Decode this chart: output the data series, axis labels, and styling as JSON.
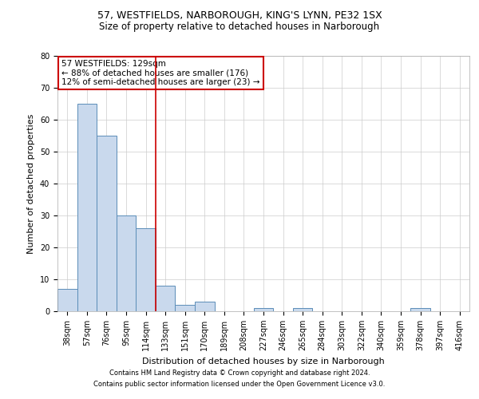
{
  "title1": "57, WESTFIELDS, NARBOROUGH, KING'S LYNN, PE32 1SX",
  "title2": "Size of property relative to detached houses in Narborough",
  "xlabel": "Distribution of detached houses by size in Narborough",
  "ylabel": "Number of detached properties",
  "categories": [
    "38sqm",
    "57sqm",
    "76sqm",
    "95sqm",
    "114sqm",
    "133sqm",
    "151sqm",
    "170sqm",
    "189sqm",
    "208sqm",
    "227sqm",
    "246sqm",
    "265sqm",
    "284sqm",
    "303sqm",
    "322sqm",
    "340sqm",
    "359sqm",
    "378sqm",
    "397sqm",
    "416sqm"
  ],
  "values": [
    7,
    65,
    55,
    30,
    26,
    8,
    2,
    3,
    0,
    0,
    1,
    0,
    1,
    0,
    0,
    0,
    0,
    0,
    1,
    0,
    0
  ],
  "bar_color": "#c9d9ed",
  "bar_edge_color": "#5b8db8",
  "vline_x": 4.5,
  "vline_color": "#cc0000",
  "ylim": [
    0,
    80
  ],
  "yticks": [
    0,
    10,
    20,
    30,
    40,
    50,
    60,
    70,
    80
  ],
  "annotation_title": "57 WESTFIELDS: 129sqm",
  "annotation_line1": "← 88% of detached houses are smaller (176)",
  "annotation_line2": "12% of semi-detached houses are larger (23) →",
  "annotation_box_color": "#cc0000",
  "footer1": "Contains HM Land Registry data © Crown copyright and database right 2024.",
  "footer2": "Contains public sector information licensed under the Open Government Licence v3.0.",
  "bg_color": "#ffffff",
  "grid_color": "#cccccc",
  "title_fontsize": 9,
  "subtitle_fontsize": 8.5,
  "tick_fontsize": 7,
  "ylabel_fontsize": 8,
  "xlabel_fontsize": 8
}
